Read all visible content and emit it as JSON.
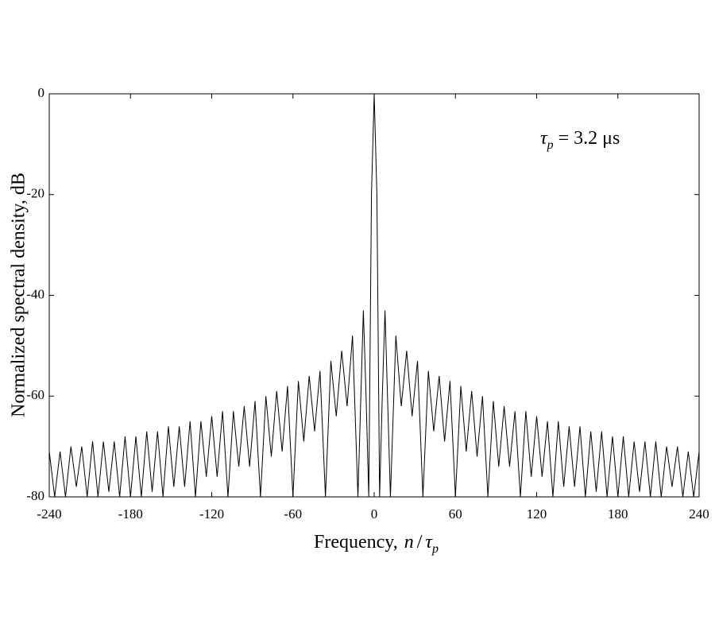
{
  "chart_data": {
    "type": "line",
    "xlabel": [
      "Frequency,",
      "n",
      "/",
      "τ",
      "p"
    ],
    "ylabel": "Normalized spectral density, dB",
    "annotation": [
      "τ",
      "p",
      "= 3.2 μs"
    ],
    "color": "#000000",
    "x": [
      -240,
      -236,
      -232,
      -228,
      -224,
      -220,
      -216,
      -212,
      -208,
      -204,
      -200,
      -196,
      -192,
      -188,
      -184,
      -180,
      -176,
      -172,
      -168,
      -164,
      -160,
      -156,
      -152,
      -148,
      -144,
      -140,
      -136,
      -132,
      -128,
      -124,
      -120,
      -116,
      -112,
      -108,
      -104,
      -100,
      -96,
      -92,
      -88,
      -84,
      -80,
      -76,
      -72,
      -68,
      -64,
      -60,
      -56,
      -52,
      -48,
      -44,
      -40,
      -36,
      -32,
      -28,
      -24,
      -20,
      -16,
      -12,
      -8,
      -6,
      -4,
      -2,
      0,
      2,
      4,
      6,
      8,
      12,
      16,
      20,
      24,
      28,
      32,
      36,
      40,
      44,
      48,
      52,
      56,
      60,
      64,
      68,
      72,
      76,
      80,
      84,
      88,
      92,
      96,
      100,
      104,
      108,
      112,
      116,
      120,
      124,
      128,
      132,
      136,
      140,
      144,
      148,
      152,
      156,
      160,
      164,
      168,
      172,
      176,
      180,
      184,
      188,
      192,
      196,
      200,
      204,
      208,
      212,
      216,
      220,
      224,
      228,
      232,
      236,
      240
    ],
    "values": [
      -71,
      -80,
      -71,
      -80,
      -70,
      -78,
      -70,
      -80,
      -69,
      -80,
      -69,
      -79,
      -69,
      -80,
      -68,
      -80,
      -68,
      -80,
      -67,
      -79,
      -67,
      -80,
      -66,
      -78,
      -66,
      -78,
      -65,
      -80,
      -65,
      -76,
      -64,
      -76,
      -63,
      -80,
      -63,
      -74,
      -62,
      -74,
      -61,
      -80,
      -60,
      -72,
      -59,
      -71,
      -58,
      -80,
      -57,
      -69,
      -56,
      -67,
      -55,
      -80,
      -53,
      -64,
      -51,
      -62,
      -48,
      -80,
      -43,
      -60,
      -80,
      -20,
      0,
      -20,
      -80,
      -60,
      -43,
      -80,
      -48,
      -62,
      -51,
      -64,
      -53,
      -80,
      -55,
      -67,
      -56,
      -69,
      -57,
      -80,
      -58,
      -71,
      -59,
      -72,
      -60,
      -80,
      -61,
      -74,
      -62,
      -74,
      -63,
      -80,
      -63,
      -76,
      -64,
      -76,
      -65,
      -80,
      -65,
      -78,
      -66,
      -78,
      -66,
      -80,
      -67,
      -79,
      -67,
      -80,
      -68,
      -80,
      -68,
      -80,
      -69,
      -79,
      -69,
      -80,
      -69,
      -80,
      -70,
      -78,
      -70,
      -80,
      -71,
      -80,
      -71
    ],
    "xlim": [
      -240,
      240
    ],
    "xticks": [
      -240,
      -180,
      -120,
      -60,
      0,
      60,
      120,
      180,
      240
    ],
    "ylim": [
      -80,
      0
    ],
    "yticks": [
      0,
      -20,
      -40,
      -60,
      -80
    ]
  }
}
